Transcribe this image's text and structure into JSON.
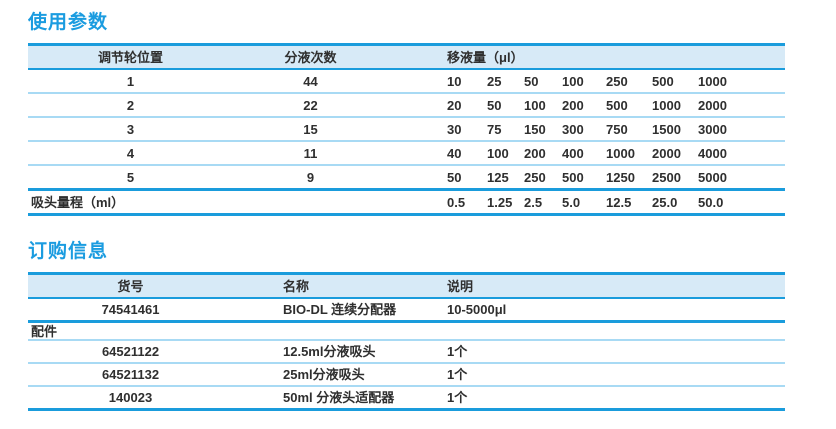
{
  "colors": {
    "accent": "#1a9cdc",
    "thin_line": "#a8daf4",
    "header_band": "#d7eaf7",
    "title_blue": "#1b9ce0",
    "text": "#2f2f2f"
  },
  "usage": {
    "title": "使用参数",
    "header": {
      "wheel": "调节轮位置",
      "dispenses": "分液次数",
      "volume": "移液量（μl）"
    },
    "rows": [
      {
        "wheel": "1",
        "dispenses": "44",
        "volumes": [
          "10",
          "25",
          "50",
          "100",
          "250",
          "500",
          "1000"
        ]
      },
      {
        "wheel": "2",
        "dispenses": "22",
        "volumes": [
          "20",
          "50",
          "100",
          "200",
          "500",
          "1000",
          "2000"
        ]
      },
      {
        "wheel": "3",
        "dispenses": "15",
        "volumes": [
          "30",
          "75",
          "150",
          "300",
          "750",
          "1500",
          "3000"
        ]
      },
      {
        "wheel": "4",
        "dispenses": "11",
        "volumes": [
          "40",
          "100",
          "200",
          "400",
          "1000",
          "2000",
          "4000"
        ]
      },
      {
        "wheel": "5",
        "dispenses": "9",
        "volumes": [
          "50",
          "125",
          "250",
          "500",
          "1250",
          "2500",
          "5000"
        ]
      }
    ],
    "footer": {
      "label": "吸头量程（ml）",
      "volumes": [
        "0.5",
        "1.25",
        "2.5",
        "5.0",
        "12.5",
        "25.0",
        "50.0"
      ]
    }
  },
  "order": {
    "title": "订购信息",
    "header": {
      "sku": "货号",
      "name": "名称",
      "desc": "说明"
    },
    "main_row": {
      "sku": "74541461",
      "name": "BIO-DL 连续分配器",
      "desc": "10-5000μl"
    },
    "accessories_label": "配件",
    "accessories": [
      {
        "sku": "64521122",
        "name": "12.5ml分液吸头",
        "desc": "1个"
      },
      {
        "sku": "64521132",
        "name": "25ml分液吸头",
        "desc": "1个"
      },
      {
        "sku": "140023",
        "name": "50ml 分液头适配器",
        "desc": "1个"
      }
    ]
  }
}
